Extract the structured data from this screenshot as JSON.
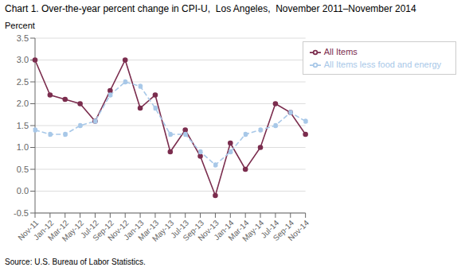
{
  "chart_data": {
    "type": "line",
    "title": "Chart 1. Over-the-year percent change in CPI-U,  Los Angeles,  November 2011–November 2014",
    "y_label": "Percent",
    "annotations": [
      "Source: U.S. Bureau of Labor Statistics."
    ],
    "categories": [
      "Nov-11",
      "Jan-12",
      "Mar-12",
      "May-12",
      "Jul-12",
      "Sep-12",
      "Nov-12",
      "Jan-13",
      "Mar-13",
      "May-13",
      "Jul-13",
      "Sep-13",
      "Nov-13",
      "Jan-14",
      "Mar-14",
      "May-14",
      "Jul-14",
      "Sep-14",
      "Nov-14"
    ],
    "series": [
      {
        "name": "All Items",
        "color": "#7b2d4e",
        "marker": "circle",
        "line_style": "solid",
        "values": [
          3.0,
          2.2,
          2.1,
          2.0,
          1.6,
          2.3,
          3.0,
          1.9,
          2.2,
          0.9,
          1.4,
          0.8,
          -0.1,
          1.1,
          0.5,
          1.0,
          2.0,
          1.8,
          1.3
        ]
      },
      {
        "name": "All Items less food and energy",
        "color": "#a8c8e8",
        "marker": "circle",
        "line_style": "dashed",
        "values": [
          1.4,
          1.3,
          1.3,
          1.5,
          1.6,
          2.2,
          2.5,
          2.4,
          1.9,
          1.3,
          1.3,
          0.9,
          0.6,
          0.9,
          1.3,
          1.4,
          1.5,
          1.8,
          1.6
        ]
      }
    ],
    "ylim": [
      -0.5,
      3.5
    ],
    "yticks": [
      -0.5,
      {
        "value": 0.0,
        "label": "0.0"
      },
      0.5,
      {
        "value": 1.0,
        "label": "1.0"
      },
      1.5,
      {
        "value": 2.0,
        "label": "2.0"
      },
      2.5,
      {
        "value": 3.0,
        "label": "3.0"
      },
      3.5
    ],
    "grid": true,
    "legend": "upper right"
  }
}
